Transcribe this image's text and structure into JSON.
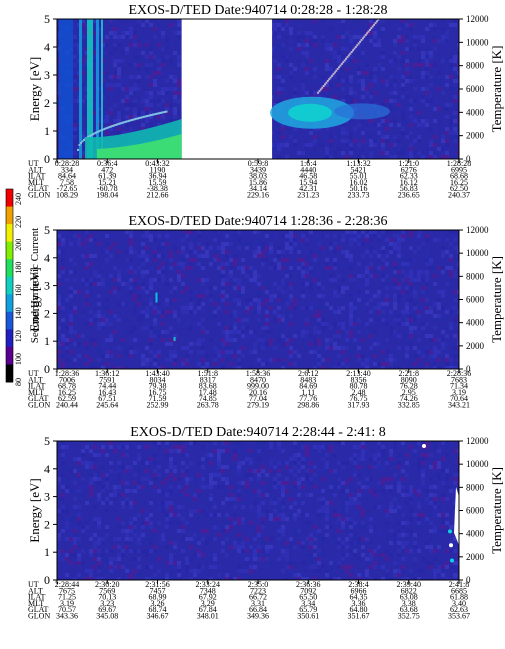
{
  "colors": {
    "bg": "#2a2aa8",
    "colorbar": [
      "#000000",
      "#5a0090",
      "#2020c0",
      "#1a58d8",
      "#10a0e0",
      "#10d0c0",
      "#20e060",
      "#80f000",
      "#f0f000",
      "#f0a000",
      "#f00000"
    ]
  },
  "colorbar": {
    "label": "Second Harmonic Current",
    "ticks": [
      "240",
      "220",
      "200",
      "180",
      "160",
      "140",
      "120",
      "100",
      "80"
    ]
  },
  "chart_data": [
    {
      "type": "heatmap",
      "title": "EXOS-D/TED   Date:940714   0:28:28 - 1:28:28",
      "ylabel": "Energy [eV]",
      "y2label": "Temperature [K]",
      "yticks": [
        "5",
        "4",
        "3",
        "2",
        "1",
        "0"
      ],
      "y2ticks": [
        "12000",
        "10000",
        "8000",
        "6000",
        "4000",
        "2000",
        "0"
      ],
      "ylim": [
        0,
        5
      ],
      "y2lim": [
        0,
        12000
      ],
      "gap": [
        "0:43:32",
        "0:59:8"
      ],
      "rows": [
        {
          "name": "UT",
          "values": [
            "0:28:28",
            "0:36:4",
            "0:43:32",
            "",
            "0:59:8",
            "1:6:4",
            "1:13:32",
            "1:21:0",
            "1:28:28"
          ]
        },
        {
          "name": "ALT",
          "values": [
            "334",
            "472",
            "1190",
            "",
            "3439",
            "4440",
            "5421",
            "6276",
            "6995"
          ]
        },
        {
          "name": "ILAT",
          "values": [
            "84.64",
            "61.39",
            "36.94",
            "",
            "38.03",
            "46.58",
            "55.01",
            "62.33",
            "68.68"
          ]
        },
        {
          "name": "MLT",
          "values": [
            "7.58",
            "15.21",
            "15.59",
            "",
            "15.86",
            "15.94",
            "16.02",
            "16.12",
            "16.25"
          ]
        },
        {
          "name": "GLAT",
          "values": [
            "-72.65",
            "-60.78",
            "-38.38",
            "",
            "34.14",
            "42.31",
            "50.16",
            "56.83",
            "62.50"
          ]
        },
        {
          "name": "GLON",
          "values": [
            "108.29",
            "198.04",
            "212.66",
            "",
            "229.16",
            "231.23",
            "233.73",
            "236.65",
            "240.37"
          ]
        }
      ]
    },
    {
      "type": "heatmap",
      "title": "EXOS-D/TED   Date:940714   1:28:36 - 2:28:36",
      "ylabel": "Energy [eV]",
      "y2label": "Temperature [K]",
      "yticks": [
        "5",
        "4",
        "3",
        "2",
        "1",
        "0"
      ],
      "y2ticks": [
        "12000",
        "10000",
        "8000",
        "6000",
        "4000",
        "2000",
        "0"
      ],
      "ylim": [
        0,
        5
      ],
      "y2lim": [
        0,
        12000
      ],
      "rows": [
        {
          "name": "UT",
          "values": [
            "1:28:36",
            "1:36:12",
            "1:43:40",
            "1:51:8",
            "1:58:36",
            "2:6:12",
            "2:13:40",
            "2:21:8",
            "2:28:36"
          ]
        },
        {
          "name": "ALT",
          "values": [
            "7006",
            "7591",
            "8034",
            "8317",
            "8470",
            "8483",
            "8356",
            "8090",
            "7683"
          ]
        },
        {
          "name": "ILAT",
          "values": [
            "68.78",
            "74.44",
            "79.38",
            "83.68",
            "999.00",
            "84.69",
            "80.78",
            "76.28",
            "71.34"
          ]
        },
        {
          "name": "MLT",
          "values": [
            "16.25",
            "16.43",
            "16.75",
            "17.48",
            "20.16",
            "1.11",
            "2.48",
            "2.95",
            "3.19"
          ]
        },
        {
          "name": "GLAT",
          "values": [
            "62.59",
            "67.51",
            "71.59",
            "74.85",
            "77.04",
            "77.76",
            "76.75",
            "74.26",
            "70.64"
          ]
        },
        {
          "name": "GLON",
          "values": [
            "240.44",
            "245.64",
            "252.99",
            "263.78",
            "279.19",
            "298.86",
            "317.93",
            "332.85",
            "343.21"
          ]
        }
      ]
    },
    {
      "type": "heatmap",
      "title": "EXOS-D/TED   Date:940714   2:28:44 - 2:41: 8",
      "ylabel": "Energy [eV]",
      "y2label": "Temperature [K]",
      "yticks": [
        "5",
        "4",
        "3",
        "2",
        "1",
        "0"
      ],
      "y2ticks": [
        "12000",
        "10000",
        "8000",
        "6000",
        "4000",
        "2000",
        "0"
      ],
      "ylim": [
        0,
        5
      ],
      "y2lim": [
        0,
        12000
      ],
      "rows": [
        {
          "name": "UT",
          "values": [
            "2:28:44",
            "2:30:20",
            "2:31:56",
            "2:33:24",
            "2:35:0",
            "2:36:36",
            "2:38:4",
            "2:39:40",
            "2:41:8"
          ]
        },
        {
          "name": "ALT",
          "values": [
            "7675",
            "7569",
            "7457",
            "7348",
            "7223",
            "7092",
            "6966",
            "6822",
            "6685"
          ]
        },
        {
          "name": "ILAT",
          "values": [
            "71.25",
            "70.13",
            "68.99",
            "67.92",
            "66.72",
            "65.50",
            "64.35",
            "63.08",
            "61.88"
          ]
        },
        {
          "name": "MLT",
          "values": [
            "3.19",
            "3.23",
            "3.26",
            "3.29",
            "3.31",
            "3.34",
            "3.36",
            "3.38",
            "3.40"
          ]
        },
        {
          "name": "GLAT",
          "values": [
            "70.57",
            "69.67",
            "68.74",
            "67.84",
            "66.84",
            "65.79",
            "64.80",
            "63.68",
            "62.63"
          ]
        },
        {
          "name": "GLON",
          "values": [
            "343.36",
            "345.08",
            "346.67",
            "348.01",
            "349.36",
            "350.61",
            "351.67",
            "352.75",
            "353.67"
          ]
        }
      ]
    }
  ]
}
